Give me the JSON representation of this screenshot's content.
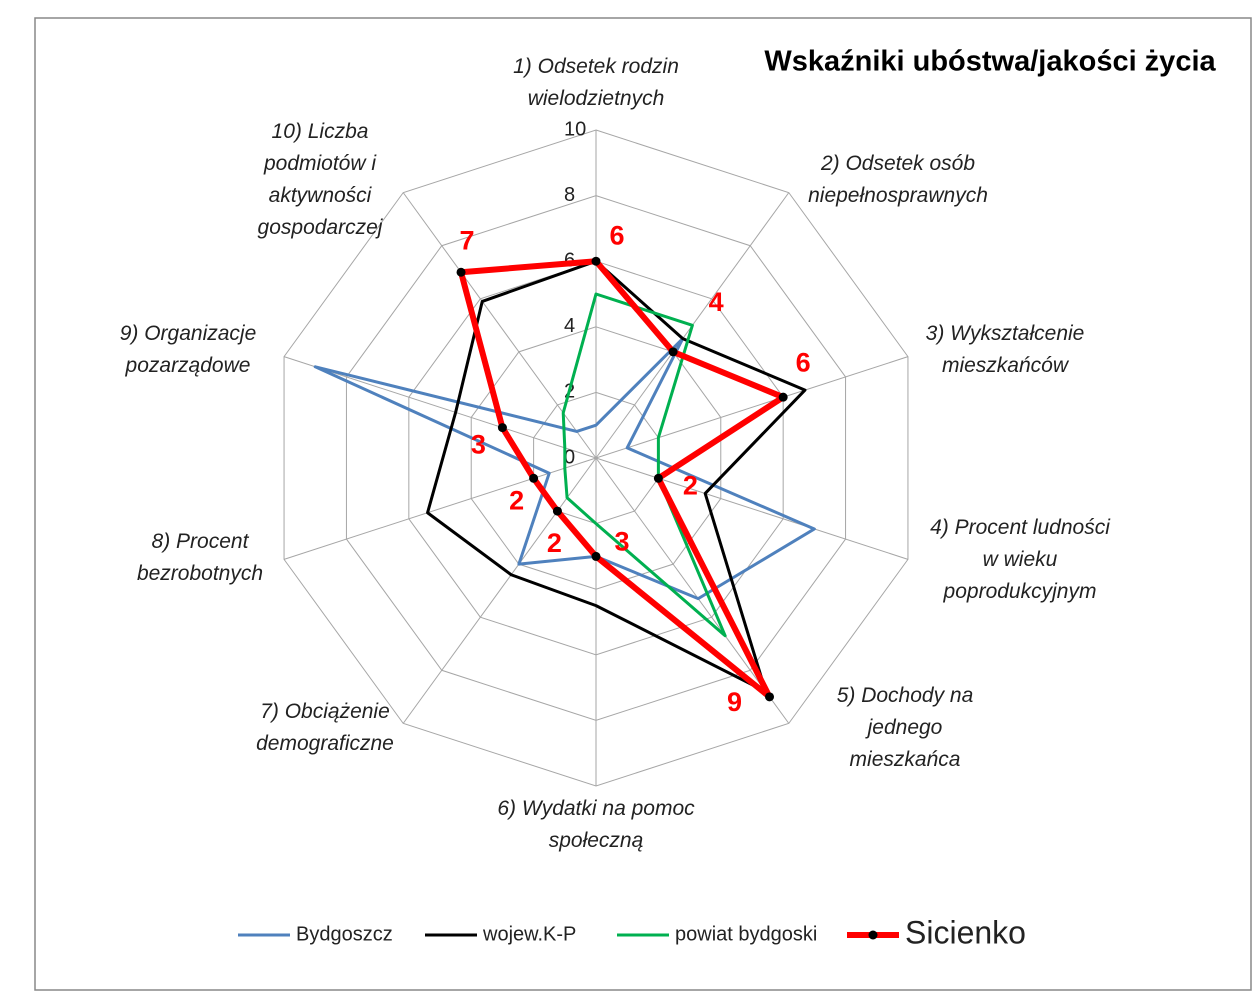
{
  "chart_data": {
    "type": "radar",
    "title": "Wskaźniki ubóstwa/jakości życia",
    "categories": [
      "1)  Odsetek rodzin wielodzietnych",
      "2) Odsetek osób niepełnosprawnych",
      "3) Wykształcenie mieszkańców",
      "4) Procent ludności w wieku poprodukcyjnym",
      "5) Dochody na jednego mieszkańca",
      "6) Wydatki na pomoc społeczną",
      "7) Obciążenie demograficzne",
      "8) Procent bezrobotnych",
      "9) Organizacje pozarządowe",
      "10) Liczba podmiotów i aktywności gospodarczej"
    ],
    "series": [
      {
        "name": "Bydgoszcz",
        "color": "#4f81bd",
        "values": [
          1,
          4.5,
          1,
          7,
          5.3,
          3,
          4,
          1.5,
          9,
          1
        ]
      },
      {
        "name": "wojew.K-P",
        "color": "#000000",
        "values": [
          6,
          4.5,
          6.7,
          3.5,
          8.8,
          4.5,
          4.4,
          5.4,
          4.5,
          5.9
        ]
      },
      {
        "name": "powiat bydgoski",
        "color": "#00b050",
        "values": [
          5,
          5,
          2,
          2,
          6.7,
          2,
          1.5,
          1,
          1,
          1.7
        ]
      },
      {
        "name": "Sicienko",
        "color": "#ff0000",
        "values": [
          6,
          4,
          6,
          2,
          9,
          3,
          2,
          2,
          3,
          7
        ]
      }
    ],
    "ylim": [
      0,
      10
    ],
    "yticks": [
      0,
      2,
      4,
      6,
      8,
      10
    ],
    "grid": true,
    "legend": "bottom"
  }
}
